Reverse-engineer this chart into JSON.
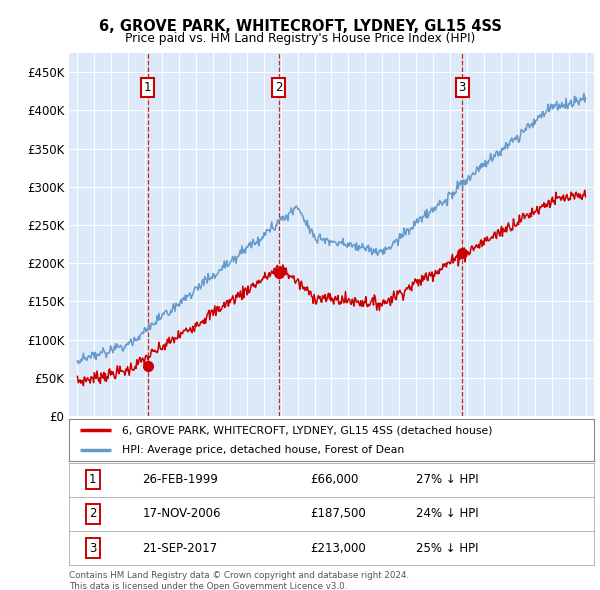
{
  "title": "6, GROVE PARK, WHITECROFT, LYDNEY, GL15 4SS",
  "subtitle": "Price paid vs. HM Land Registry's House Price Index (HPI)",
  "sales": [
    {
      "date_num": 1999.15,
      "price": 66000,
      "label": "1",
      "pct": "27% ↓ HPI",
      "date_str": "26-FEB-1999",
      "price_str": "£66,000"
    },
    {
      "date_num": 2006.88,
      "price": 187500,
      "label": "2",
      "pct": "24% ↓ HPI",
      "date_str": "17-NOV-2006",
      "price_str": "£187,500"
    },
    {
      "date_num": 2017.72,
      "price": 213000,
      "label": "3",
      "pct": "25% ↓ HPI",
      "date_str": "21-SEP-2017",
      "price_str": "£213,000"
    }
  ],
  "legend_property": "6, GROVE PARK, WHITECROFT, LYDNEY, GL15 4SS (detached house)",
  "legend_hpi": "HPI: Average price, detached house, Forest of Dean",
  "footer": "Contains HM Land Registry data © Crown copyright and database right 2024.\nThis data is licensed under the Open Government Licence v3.0.",
  "ylim": [
    0,
    475000
  ],
  "xlim": [
    1994.5,
    2025.5
  ],
  "bg_color": "#dce9f8",
  "red_line_color": "#cc0000",
  "blue_line_color": "#6699cc",
  "dashed_color": "#cc0000",
  "marker_box_color": "#cc0000",
  "yticks": [
    0,
    50000,
    100000,
    150000,
    200000,
    250000,
    300000,
    350000,
    400000,
    450000
  ]
}
